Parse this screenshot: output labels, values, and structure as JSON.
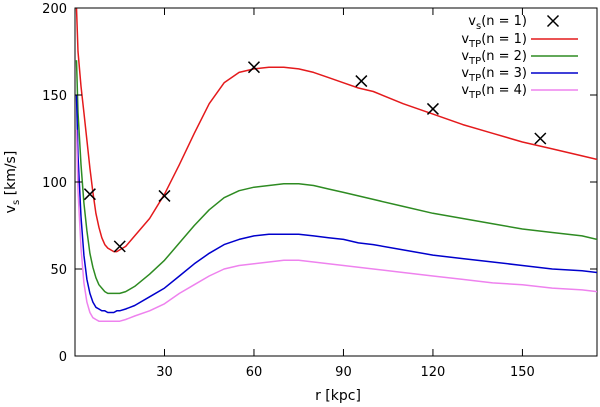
{
  "chart_data": {
    "type": "line",
    "title": "",
    "xlabel": "r [kpc]",
    "ylabel_main": "v",
    "ylabel_sub": "s",
    "ylabel_unit": " [km/s]",
    "xlim": [
      0,
      175
    ],
    "ylim": [
      0,
      200
    ],
    "xticks": [
      30,
      60,
      90,
      120,
      150
    ],
    "yticks": [
      0,
      50,
      100,
      150,
      200
    ],
    "grid": false,
    "legend_position": "top-right",
    "observed": {
      "name": "v_s(n = 1)",
      "legend_main": "v",
      "legend_sub": "s",
      "legend_rest": "(n = 1)",
      "marker": "cross",
      "color": "#000000",
      "x": [
        5,
        15,
        30,
        60,
        96,
        120,
        156
      ],
      "y": [
        93,
        63,
        92,
        166,
        158,
        142,
        125
      ]
    },
    "series": [
      {
        "name": "v_TP(n = 1)",
        "legend_main": "v",
        "legend_sub": "TP",
        "legend_rest": "(n = 1)",
        "color": "#e41a1c",
        "x": [
          0.5,
          1,
          2,
          3,
          4,
          5,
          6,
          7,
          8,
          9,
          10,
          11,
          12,
          13,
          14,
          15,
          17,
          20,
          25,
          30,
          35,
          40,
          45,
          50,
          55,
          60,
          65,
          70,
          75,
          80,
          85,
          90,
          95,
          100,
          110,
          120,
          130,
          140,
          150,
          160,
          170,
          175
        ],
        "values": [
          200,
          175,
          155,
          140,
          124,
          108,
          94,
          82,
          74,
          68,
          64,
          62,
          61,
          60,
          60,
          61,
          63,
          69,
          79,
          93,
          110,
          128,
          145,
          157,
          163,
          165,
          166,
          166,
          165,
          163,
          160,
          157,
          154,
          152,
          145,
          139,
          133,
          128,
          123,
          119,
          115,
          113
        ]
      },
      {
        "name": "v_TP(n = 2)",
        "legend_main": "v",
        "legend_sub": "TP",
        "legend_rest": "(n = 2)",
        "color": "#2e8b22",
        "x": [
          0.5,
          1,
          2,
          3,
          4,
          5,
          6,
          7,
          8,
          9,
          10,
          11,
          12,
          13,
          14,
          15,
          17,
          20,
          25,
          30,
          35,
          40,
          45,
          50,
          55,
          60,
          65,
          70,
          75,
          80,
          85,
          90,
          95,
          100,
          110,
          120,
          130,
          140,
          150,
          160,
          170,
          175
        ],
        "values": [
          170,
          140,
          110,
          88,
          72,
          59,
          51,
          45,
          41,
          39,
          37,
          36,
          36,
          36,
          36,
          36,
          37,
          40,
          47,
          55,
          65,
          75,
          84,
          91,
          95,
          97,
          98,
          99,
          99,
          98,
          96,
          94,
          92,
          90,
          86,
          82,
          79,
          76,
          73,
          71,
          69,
          67
        ]
      },
      {
        "name": "v_TP(n = 3)",
        "legend_main": "v",
        "legend_sub": "TP",
        "legend_rest": "(n = 3)",
        "color": "#0000cc",
        "x": [
          0.5,
          1,
          2,
          3,
          4,
          5,
          6,
          7,
          8,
          9,
          10,
          11,
          12,
          13,
          14,
          15,
          17,
          20,
          25,
          30,
          35,
          40,
          45,
          50,
          55,
          60,
          65,
          70,
          75,
          80,
          85,
          90,
          95,
          100,
          110,
          120,
          130,
          140,
          150,
          160,
          170,
          175
        ],
        "values": [
          150,
          115,
          80,
          58,
          44,
          36,
          31,
          28,
          27,
          26,
          26,
          25,
          25,
          25,
          26,
          26,
          27,
          29,
          34,
          39,
          46,
          53,
          59,
          64,
          67,
          69,
          70,
          70,
          70,
          69,
          68,
          67,
          65,
          64,
          61,
          58,
          56,
          54,
          52,
          50,
          49,
          48
        ]
      },
      {
        "name": "v_TP(n = 4)",
        "legend_main": "v",
        "legend_sub": "TP",
        "legend_rest": "(n = 4)",
        "color": "#ee82ee",
        "x": [
          0.5,
          1,
          2,
          3,
          4,
          5,
          6,
          7,
          8,
          9,
          10,
          11,
          12,
          13,
          14,
          15,
          17,
          20,
          25,
          30,
          35,
          40,
          45,
          50,
          55,
          60,
          65,
          70,
          75,
          80,
          85,
          90,
          95,
          100,
          110,
          120,
          130,
          140,
          150,
          160,
          170,
          175
        ],
        "values": [
          130,
          95,
          62,
          42,
          31,
          25,
          22,
          21,
          20,
          20,
          20,
          20,
          20,
          20,
          20,
          20,
          21,
          23,
          26,
          30,
          36,
          41,
          46,
          50,
          52,
          53,
          54,
          55,
          55,
          54,
          53,
          52,
          51,
          50,
          48,
          46,
          44,
          42,
          41,
          39,
          38,
          37
        ]
      }
    ]
  }
}
